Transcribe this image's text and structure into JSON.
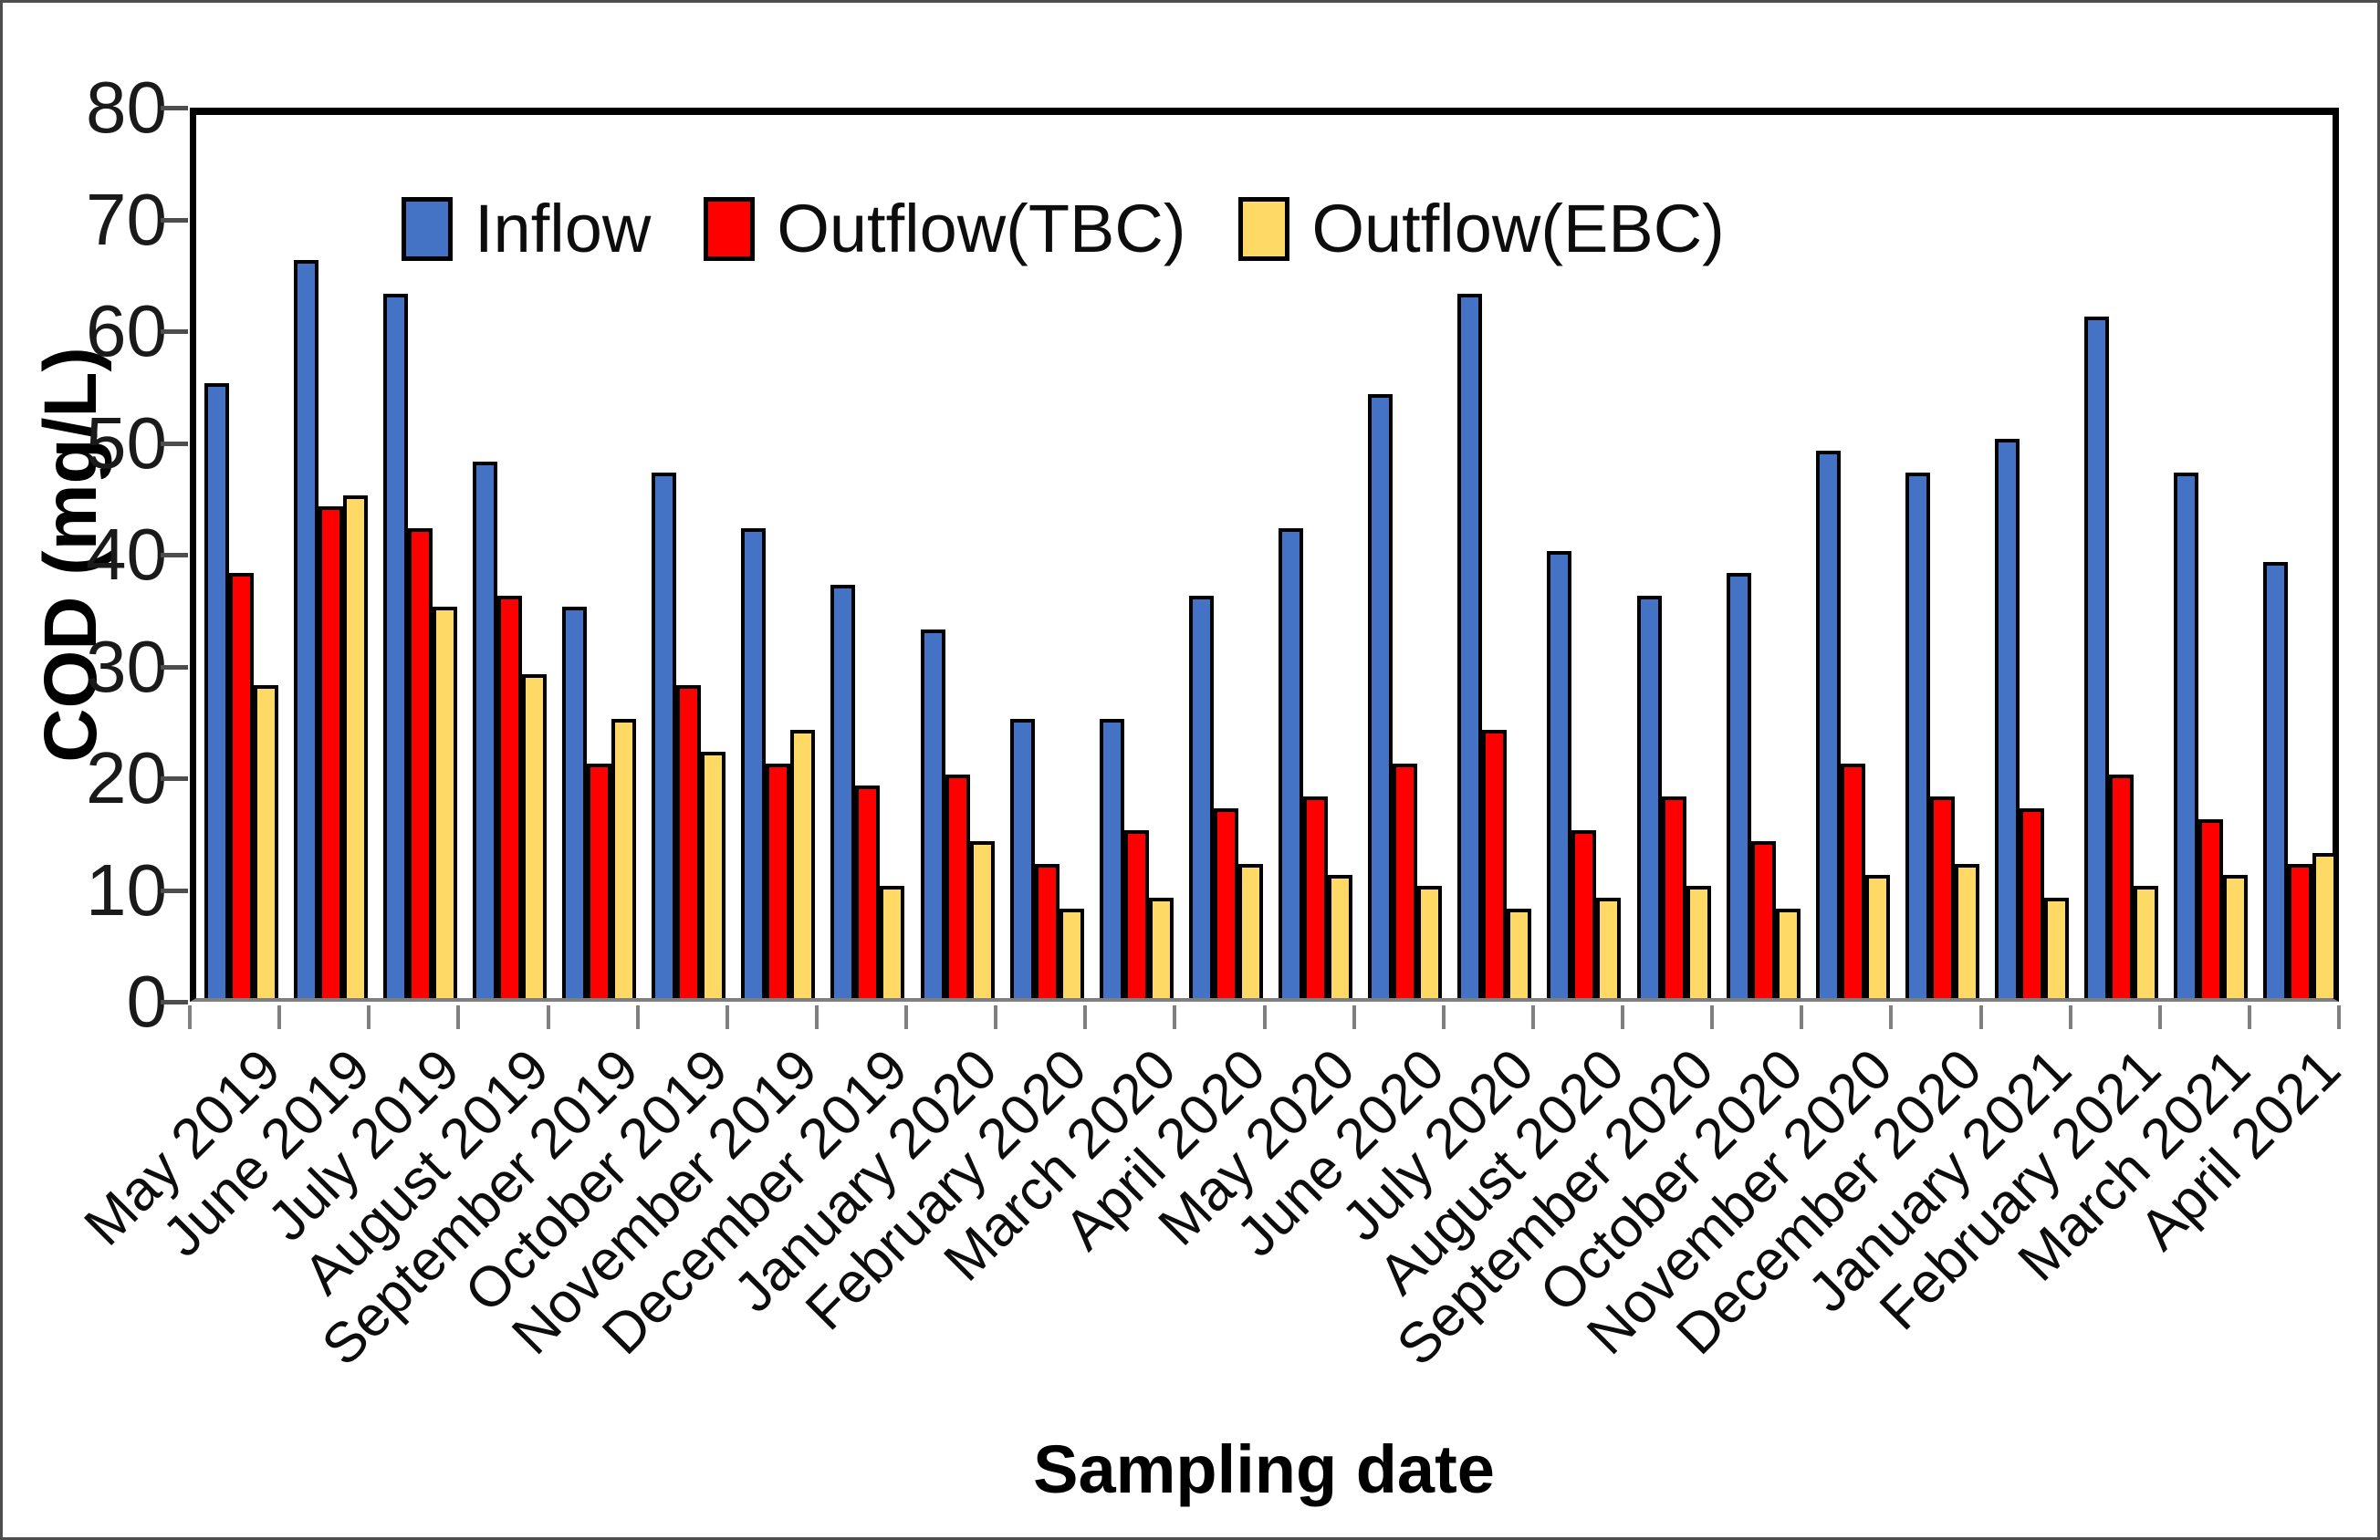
{
  "chart_data": {
    "type": "bar",
    "title": "",
    "xlabel": "Sampling date",
    "ylabel": "COD (mg/L)",
    "ylim": [
      0,
      80
    ],
    "ytick_labels": [
      "80",
      "70",
      "60",
      "50",
      "40",
      "30",
      "20",
      "10",
      "0"
    ],
    "grid": false,
    "legend_position": "top-left-inside",
    "categories": [
      "May 2019",
      "June 2019",
      "July 2019",
      "August 2019",
      "September 2019",
      "October 2019",
      "November 2019",
      "December 2019",
      "January 2020",
      "February 2020",
      "March 2020",
      "April 2020",
      "May 2020",
      "June 2020",
      "July 2020",
      "August 2020",
      "September 2020",
      "October 2020",
      "November 2020",
      "December 2020",
      "January 2021",
      "February 2021",
      "March 2021",
      "April 2021"
    ],
    "series": [
      {
        "name": "Inflow",
        "color": "#4472C4",
        "values": [
          55,
          66,
          63,
          48,
          35,
          47,
          42,
          37,
          33,
          25,
          25,
          36,
          42,
          54,
          63,
          40,
          36,
          38,
          49,
          47,
          50,
          61,
          47,
          39
        ]
      },
      {
        "name": "Outflow(TBC)",
        "color": "#FE0000",
        "values": [
          38,
          44,
          42,
          36,
          21,
          28,
          21,
          19,
          20,
          12,
          15,
          17,
          18,
          21,
          24,
          15,
          18,
          14,
          21,
          18,
          17,
          20,
          16,
          12
        ]
      },
      {
        "name": "Outflow(EBC)",
        "color": "#FFD966",
        "values": [
          28,
          45,
          35,
          29,
          25,
          22,
          24,
          10,
          14,
          8,
          9,
          12,
          11,
          10,
          8,
          9,
          10,
          8,
          11,
          12,
          9,
          10,
          11,
          13
        ]
      }
    ]
  }
}
